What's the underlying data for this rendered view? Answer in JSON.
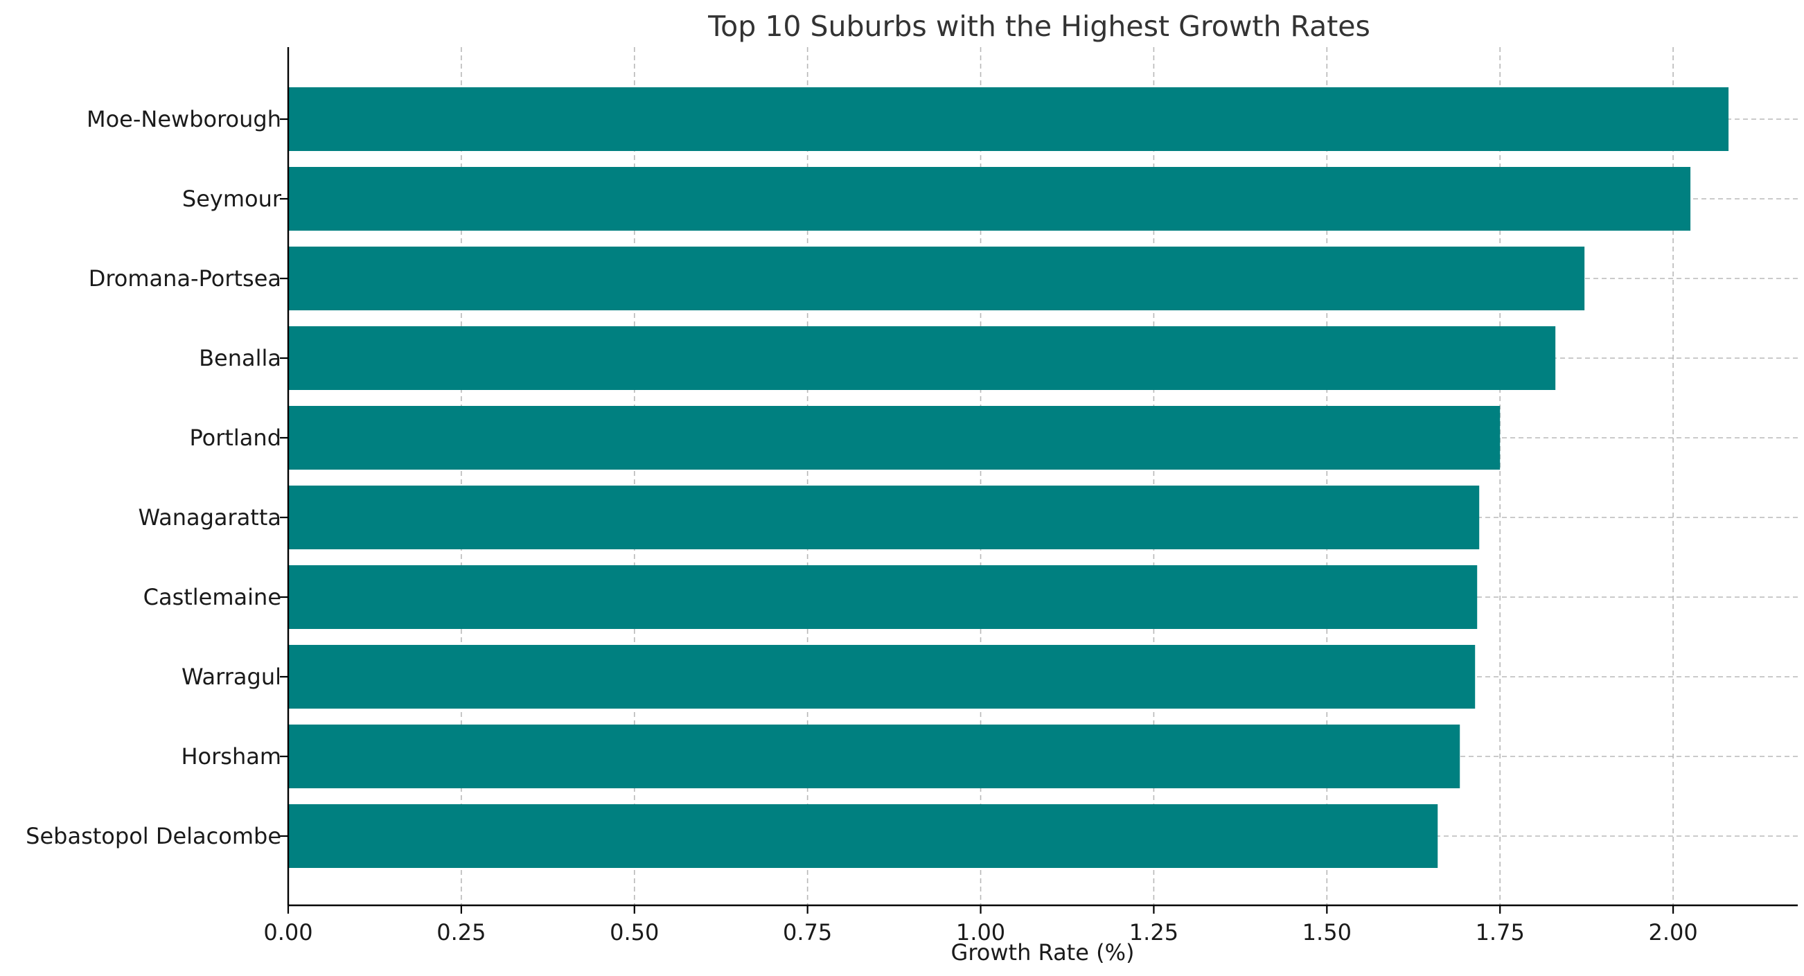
{
  "chart_data": {
    "type": "bar",
    "orientation": "horizontal",
    "title": "Top 10 Suburbs with the Highest Growth Rates",
    "xlabel": "Growth Rate (%)",
    "ylabel": "",
    "categories": [
      "Moe-Newborough",
      "Seymour",
      "Dromana-Portsea",
      "Benalla",
      "Portland",
      "Wanagaratta",
      "Castlemaine",
      "Warragul",
      "Horsham",
      "Sebastopol Delacombe"
    ],
    "values": [
      2.08,
      2.025,
      1.872,
      1.83,
      1.75,
      1.72,
      1.717,
      1.714,
      1.692,
      1.66
    ],
    "xlim": [
      0,
      2.18
    ],
    "xticks": [
      0.0,
      0.25,
      0.5,
      0.75,
      1.0,
      1.25,
      1.5,
      1.75,
      2.0
    ],
    "xtick_labels": [
      "0.00",
      "0.25",
      "0.50",
      "0.75",
      "1.00",
      "1.25",
      "1.50",
      "1.75",
      "2.00"
    ],
    "bar_color": "#008080",
    "grid": true,
    "legend": "none"
  }
}
